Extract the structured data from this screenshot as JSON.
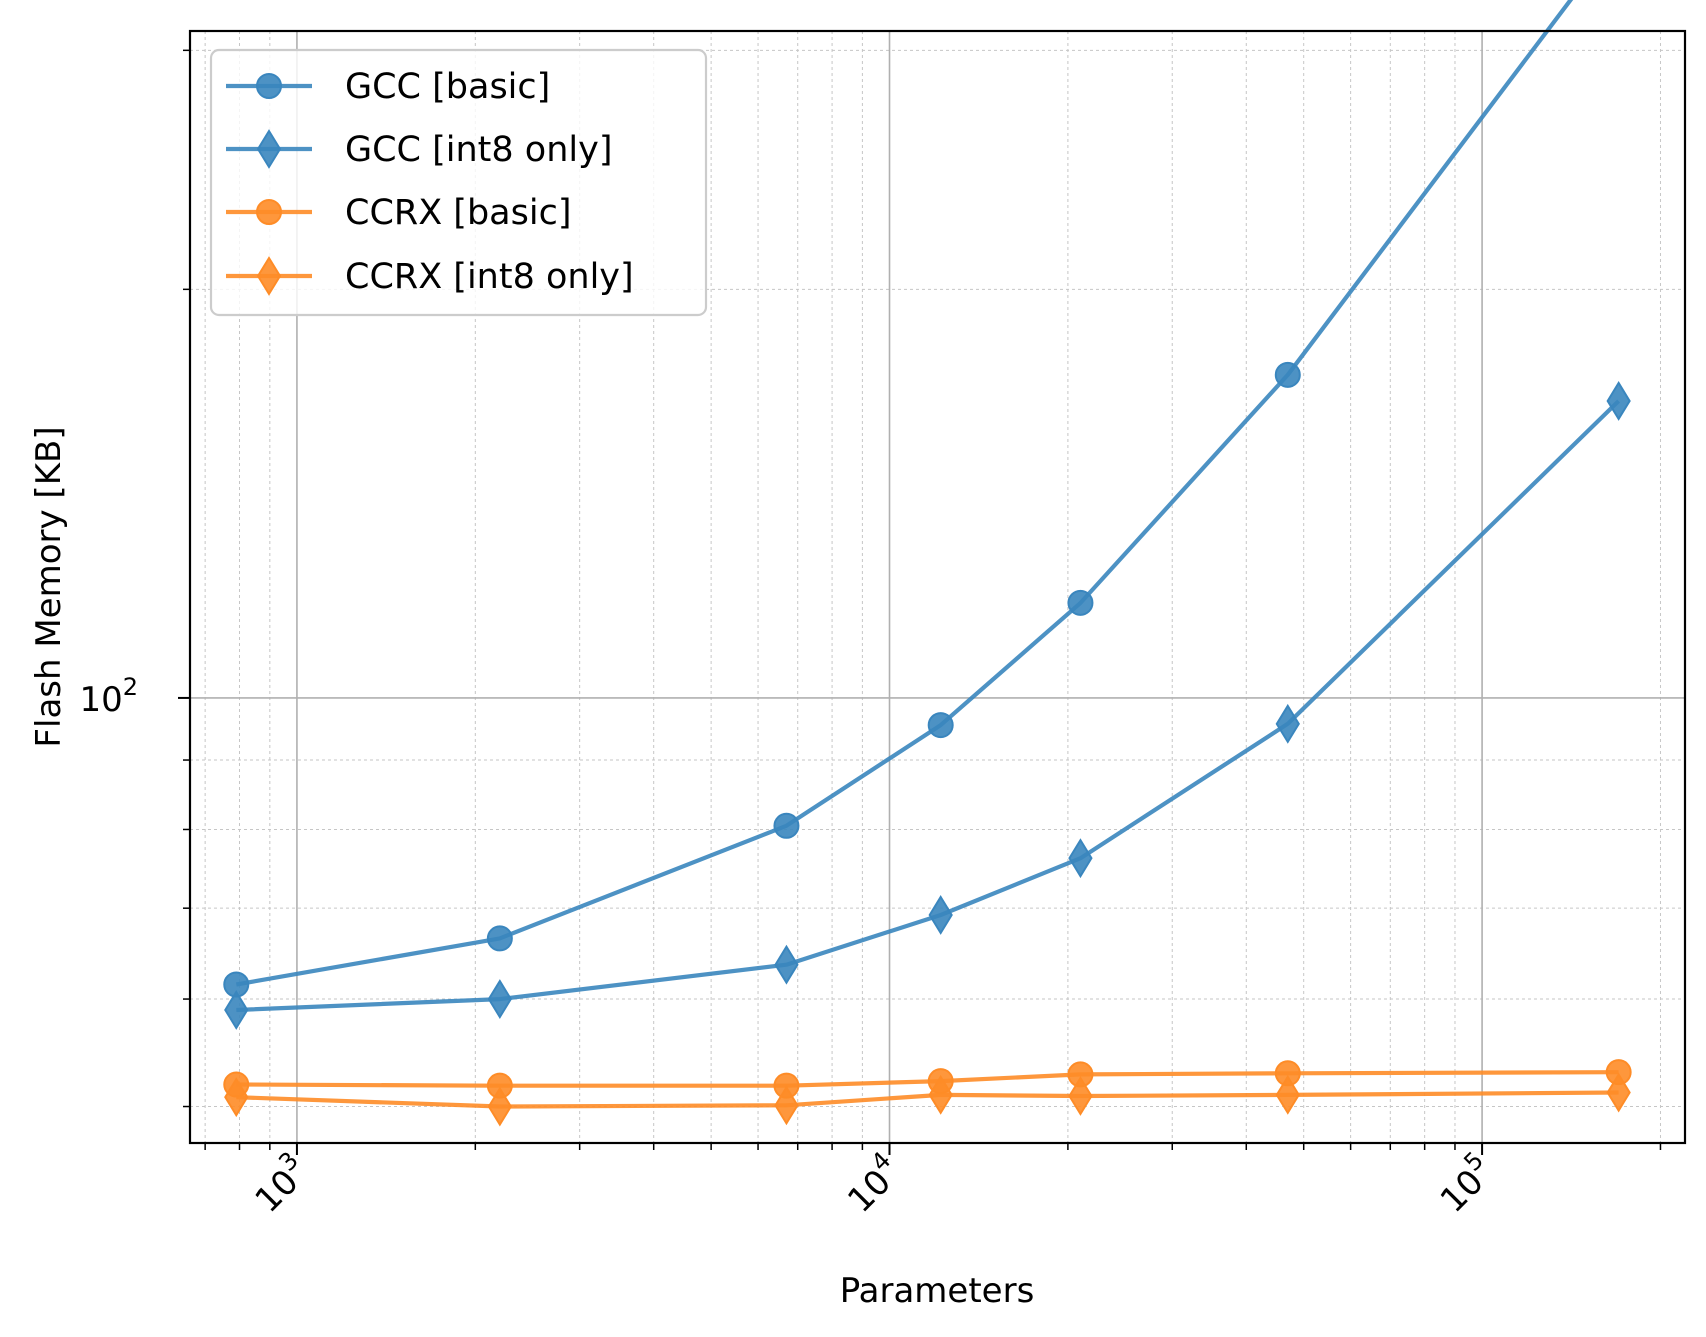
{
  "chart_data": {
    "type": "line",
    "title": "",
    "xlabel": "Parameters",
    "ylabel": "Flash Memory [KB]",
    "xscale": "log",
    "yscale": "log",
    "xlim": [
      660,
      220000
    ],
    "ylim": [
      47,
      310
    ],
    "grid": true,
    "legend_position": "top-left",
    "x_tick_labels": [
      {
        "value": 1000,
        "base": "10",
        "exp": "3"
      },
      {
        "value": 10000,
        "base": "10",
        "exp": "4"
      },
      {
        "value": 100000,
        "base": "10",
        "exp": "5"
      }
    ],
    "y_tick_labels": [
      {
        "value": 100,
        "base": "10",
        "exp": "2"
      }
    ],
    "series": [
      {
        "name": "GCC [basic]",
        "color": "#3a86be",
        "marker": "circle",
        "x": [
          790,
          2200,
          6700,
          12200,
          21000,
          47000,
          170000
        ],
        "y": [
          61.5,
          66.5,
          80.5,
          95.5,
          117.5,
          173,
          364
        ]
      },
      {
        "name": "GCC [int8 only]",
        "color": "#3a86be",
        "marker": "diamond",
        "x": [
          790,
          2200,
          6700,
          12200,
          21000,
          47000,
          170000
        ],
        "y": [
          58.9,
          60.0,
          63.6,
          69.2,
          76.2,
          95.7,
          165.5
        ]
      },
      {
        "name": "CCRX [basic]",
        "color": "#fe8c27",
        "marker": "circle",
        "x": [
          790,
          2200,
          6700,
          12200,
          21000,
          47000,
          170000
        ],
        "y": [
          51.9,
          51.8,
          51.8,
          52.2,
          52.8,
          52.9,
          53.0
        ]
      },
      {
        "name": "CCRX [int8 only]",
        "color": "#fe8c27",
        "marker": "diamond",
        "x": [
          790,
          2200,
          6700,
          12200,
          21000,
          47000,
          170000
        ],
        "y": [
          50.8,
          50.0,
          50.1,
          51.0,
          50.9,
          51.0,
          51.2
        ]
      }
    ]
  }
}
